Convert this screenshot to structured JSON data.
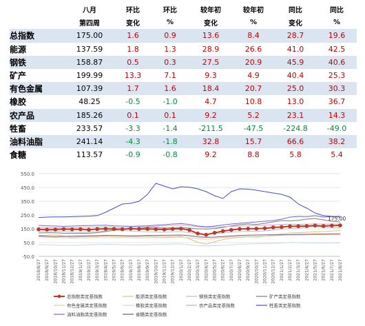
{
  "table": {
    "header_row1": [
      "",
      "八月",
      "环比",
      "环比",
      "较年初",
      "较年初",
      "同比",
      "同比"
    ],
    "header_row2": [
      "",
      "第四周",
      "变化",
      "%",
      "变化",
      "%",
      "变化",
      "%"
    ],
    "rows": [
      {
        "name": "总指数",
        "value": "175.00",
        "cells": [
          "1.6",
          "0.9",
          "13.6",
          "8.4",
          "28.7",
          "19.6"
        ]
      },
      {
        "name": "能源",
        "value": "137.59",
        "cells": [
          "1.8",
          "1.3",
          "28.9",
          "26.6",
          "41.0",
          "42.5"
        ]
      },
      {
        "name": "钢铁",
        "value": "158.87",
        "cells": [
          "0.5",
          "0.3",
          "27.5",
          "20.9",
          "45.9",
          "40.6"
        ]
      },
      {
        "name": "矿产",
        "value": "199.99",
        "cells": [
          "13.3",
          "7.1",
          "9.3",
          "4.9",
          "40.4",
          "25.3"
        ]
      },
      {
        "name": "有色金属",
        "value": "107.39",
        "cells": [
          "1.7",
          "1.6",
          "18.4",
          "20.7",
          "25.0",
          "30.3"
        ]
      },
      {
        "name": "橡胶",
        "value": "48.25",
        "cells": [
          "-0.5",
          "-1.0",
          "4.7",
          "10.8",
          "13.0",
          "36.7"
        ]
      },
      {
        "name": "农产品",
        "value": "185.26",
        "cells": [
          "0.1",
          "0.1",
          "9.2",
          "5.2",
          "23.1",
          "14.3"
        ]
      },
      {
        "name": "牲畜",
        "value": "233.57",
        "cells": [
          "-3.3",
          "-1.4",
          "-211.5",
          "-47.5",
          "-224.8",
          "-49.0"
        ]
      },
      {
        "name": "油料油脂",
        "value": "241.14",
        "cells": [
          "-4.3",
          "-1.8",
          "32.8",
          "15.7",
          "66.6",
          "38.2"
        ]
      },
      {
        "name": "食糖",
        "value": "113.57",
        "cells": [
          "-0.9",
          "-0.8",
          "9.2",
          "8.8",
          "5.8",
          "5.4"
        ]
      }
    ]
  },
  "chart_data": {
    "type": "line",
    "yticks": [
      "550.0",
      "450.0",
      "350.0",
      "250.0",
      "150.0",
      "50.0",
      "-50.0"
    ],
    "ylim": [
      -50,
      550
    ],
    "x": [
      "2018/8/27",
      "2018/9/27",
      "2018/10/27",
      "2018/11/27",
      "2018/12/27",
      "2019/1/27",
      "2019/2/27",
      "2019/3/27",
      "2019/4/27",
      "2019/5/27",
      "2019/6/27",
      "2019/7/27",
      "2019/8/27",
      "2019/9/27",
      "2019/10/27",
      "2019/11/27",
      "2019/12/27",
      "2020/1/27",
      "2020/2/27",
      "2020/3/27",
      "2020/4/27",
      "2020/5/27",
      "2020/6/27",
      "2020/7/27",
      "2020/8/27",
      "2020/9/27",
      "2020/10/27",
      "2020/11/27",
      "2020/12/27",
      "2021/1/27",
      "2021/2/27",
      "2021/3/27",
      "2021/4/27",
      "2021/5/27",
      "2021/6/27",
      "2021/7/27",
      "2021/8/27"
    ],
    "annotation": "175.00",
    "legend_position": "bottom",
    "series": [
      {
        "name": "总指数类定基指数",
        "color": "#c0392b",
        "markers": true,
        "values": [
          146,
          144,
          145,
          148,
          146,
          147,
          143,
          148,
          150,
          149,
          147,
          151,
          149,
          149,
          147,
          145,
          149,
          151,
          141,
          116,
          107,
          121,
          133,
          142,
          149,
          151,
          151,
          154,
          160,
          163,
          168,
          169,
          170,
          174,
          170,
          173,
          175
        ]
      },
      {
        "name": "能源类定基指数",
        "color": "#e2c17c",
        "values": [
          102,
          104,
          106,
          98,
          88,
          92,
          95,
          96,
          100,
          99,
          97,
          95,
          93,
          96,
          92,
          91,
          94,
          95,
          78,
          52,
          38,
          56,
          72,
          82,
          88,
          92,
          90,
          95,
          105,
          112,
          120,
          122,
          125,
          128,
          130,
          134,
          138
        ]
      },
      {
        "name": "钢铁类定基指数",
        "color": "#bfbfbf",
        "values": [
          132,
          134,
          133,
          130,
          126,
          124,
          126,
          130,
          135,
          140,
          138,
          134,
          130,
          128,
          126,
          125,
          128,
          130,
          122,
          113,
          110,
          115,
          120,
          125,
          130,
          132,
          131,
          135,
          140,
          148,
          152,
          155,
          162,
          168,
          160,
          158,
          159
        ]
      },
      {
        "name": "矿产类定基指数",
        "color": "#7a7a7a",
        "values": [
          120,
          122,
          121,
          118,
          117,
          116,
          118,
          122,
          130,
          140,
          150,
          148,
          152,
          160,
          158,
          155,
          158,
          160,
          155,
          150,
          148,
          152,
          160,
          172,
          180,
          185,
          182,
          190,
          200,
          210,
          208,
          212,
          220,
          225,
          215,
          205,
          200
        ]
      },
      {
        "name": "有色金属类定基指数",
        "color": "#f0c8a0",
        "values": [
          90,
          88,
          87,
          85,
          84,
          83,
          85,
          88,
          90,
          88,
          86,
          85,
          84,
          85,
          86,
          86,
          88,
          90,
          85,
          78,
          74,
          80,
          86,
          90,
          92,
          94,
          94,
          96,
          100,
          104,
          106,
          104,
          106,
          108,
          106,
          106,
          107
        ]
      },
      {
        "name": "橡胶类定基指数",
        "color": "#c7d7ea",
        "values": [
          35,
          34,
          32,
          30,
          30,
          32,
          34,
          36,
          38,
          37,
          35,
          34,
          33,
          34,
          36,
          37,
          40,
          40,
          34,
          28,
          26,
          28,
          30,
          34,
          38,
          40,
          42,
          44,
          45,
          46,
          52,
          50,
          48,
          47,
          47,
          48,
          48
        ]
      },
      {
        "name": "农产品类定基指数",
        "color": "#c8a8c8",
        "values": [
          160,
          158,
          157,
          156,
          158,
          160,
          161,
          162,
          164,
          162,
          160,
          162,
          163,
          165,
          168,
          172,
          175,
          176,
          172,
          165,
          160,
          162,
          165,
          168,
          170,
          172,
          174,
          176,
          178,
          182,
          184,
          182,
          184,
          186,
          184,
          185,
          185
        ]
      },
      {
        "name": "牲畜类定基指数",
        "color": "#3f51c4",
        "values": [
          232,
          235,
          236,
          236,
          238,
          240,
          242,
          246,
          270,
          300,
          330,
          335,
          350,
          400,
          480,
          460,
          440,
          455,
          452,
          440,
          420,
          390,
          370,
          420,
          440,
          438,
          430,
          420,
          410,
          400,
          380,
          330,
          300,
          265,
          245,
          240,
          234
        ]
      },
      {
        "name": "油料油脂类定基指数",
        "color": "#6a6ad8",
        "values": [
          175,
          172,
          170,
          168,
          170,
          172,
          174,
          175,
          176,
          172,
          170,
          168,
          170,
          172,
          176,
          180,
          185,
          188,
          182,
          170,
          165,
          170,
          178,
          185,
          190,
          195,
          200,
          205,
          210,
          220,
          235,
          240,
          238,
          245,
          235,
          238,
          241
        ]
      },
      {
        "name": "食糖类定基指数",
        "color": "#606080",
        "values": [
          98,
          96,
          94,
          95,
          97,
          98,
          99,
          100,
          102,
          101,
          100,
          99,
          100,
          101,
          102,
          103,
          104,
          105,
          100,
          92,
          88,
          90,
          94,
          98,
          102,
          104,
          105,
          106,
          106,
          106,
          108,
          110,
          110,
          112,
          112,
          113,
          114
        ]
      }
    ]
  }
}
